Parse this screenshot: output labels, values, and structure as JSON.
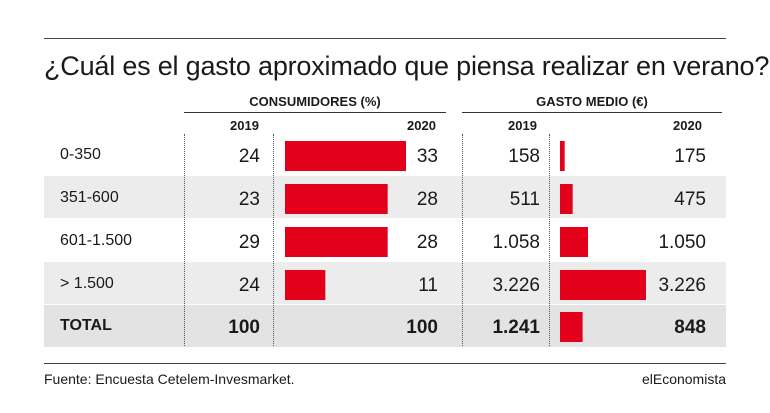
{
  "title": "¿Cuál es el gasto aproximado que piensa realizar en verano?",
  "headers": {
    "consumidores": "CONSUMIDORES (%)",
    "gasto": "GASTO MEDIO (€)",
    "y2019": "2019",
    "y2020": "2020"
  },
  "footer": {
    "source": "Fuente: Encuesta Cetelem-Invesmarket.",
    "brand": "elEconomista"
  },
  "colors": {
    "bar": "#e3001b",
    "band": "#ececec",
    "total_band": "#e3e3e3"
  },
  "chart_data": {
    "type": "table",
    "categories": [
      "0-350",
      "351-600",
      "601-1.500",
      "> 1.500",
      "TOTAL"
    ],
    "series": [
      {
        "name": "CONSUMIDORES (%) 2019",
        "values": [
          24,
          23,
          29,
          24,
          100
        ],
        "labels": [
          "24",
          "23",
          "29",
          "24",
          "100"
        ]
      },
      {
        "name": "CONSUMIDORES (%) 2020",
        "values": [
          33,
          28,
          28,
          11,
          100
        ],
        "labels": [
          "33",
          "28",
          "28",
          "11",
          "100"
        ]
      },
      {
        "name": "GASTO MEDIO (€) 2019",
        "values": [
          158,
          511,
          1058,
          3226,
          1241
        ],
        "labels": [
          "158",
          "511",
          "1.058",
          "3.226",
          "1.241"
        ]
      },
      {
        "name": "GASTO MEDIO (€) 2020",
        "values": [
          175,
          475,
          1050,
          3226,
          848
        ],
        "labels": [
          "175",
          "475",
          "1.050",
          "3.226",
          "848"
        ]
      }
    ]
  }
}
